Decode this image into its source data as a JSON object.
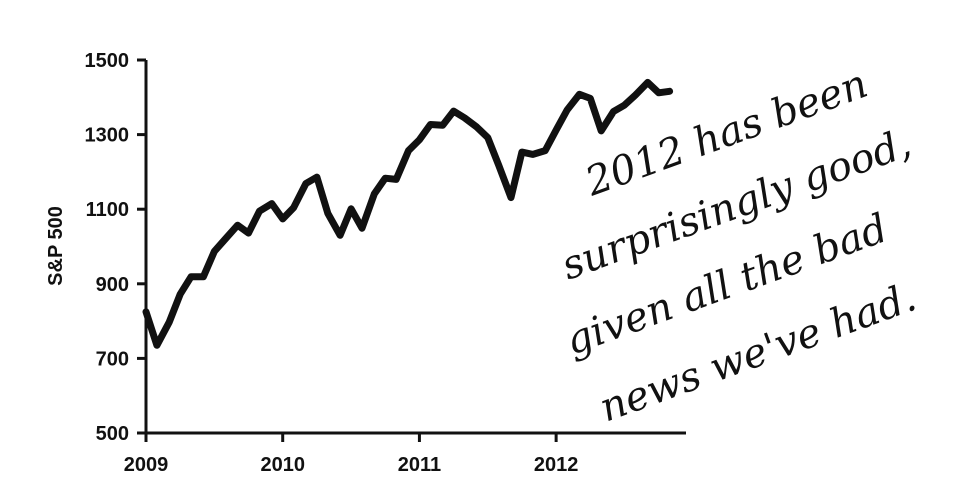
{
  "chart_data": {
    "type": "line",
    "ylabel": "S&P 500",
    "xlabel": "",
    "title": "",
    "ylim": [
      500,
      1500
    ],
    "xlim": [
      2009,
      2012.95
    ],
    "yticks": [
      "500",
      "700",
      "900",
      "1100",
      "1300",
      "1500"
    ],
    "xticks": [
      "2009",
      "2010",
      "2011",
      "2012"
    ],
    "grid": false,
    "series": [
      {
        "x": [
          2009.0,
          2009.08,
          2009.17,
          2009.25,
          2009.33,
          2009.42,
          2009.5,
          2009.58,
          2009.67,
          2009.75,
          2009.83,
          2009.92,
          2010.0,
          2010.08,
          2010.17,
          2010.25,
          2010.33,
          2010.42,
          2010.5,
          2010.58,
          2010.67,
          2010.75,
          2010.83,
          2010.92,
          2011.0,
          2011.08,
          2011.17,
          2011.25,
          2011.33,
          2011.42,
          2011.5,
          2011.58,
          2011.67,
          2011.75,
          2011.83,
          2011.92,
          2012.0,
          2012.08,
          2012.17,
          2012.25,
          2012.33,
          2012.42,
          2012.5,
          2012.58,
          2012.67,
          2012.75,
          2012.83
        ],
        "values": [
          825,
          735,
          797,
          872,
          919,
          919,
          987,
          1020,
          1057,
          1036,
          1095,
          1115,
          1074,
          1104,
          1169,
          1186,
          1089,
          1030,
          1101,
          1049,
          1141,
          1183,
          1180,
          1257,
          1286,
          1327,
          1325,
          1363,
          1345,
          1320,
          1292,
          1218,
          1131,
          1253,
          1247,
          1257,
          1312,
          1366,
          1408,
          1397,
          1310,
          1362,
          1379,
          1406,
          1440,
          1412,
          1416
        ]
      }
    ],
    "annotation": [
      "2012 has been",
      "surprisingly good,",
      "given all the bad",
      "news we've had."
    ]
  }
}
